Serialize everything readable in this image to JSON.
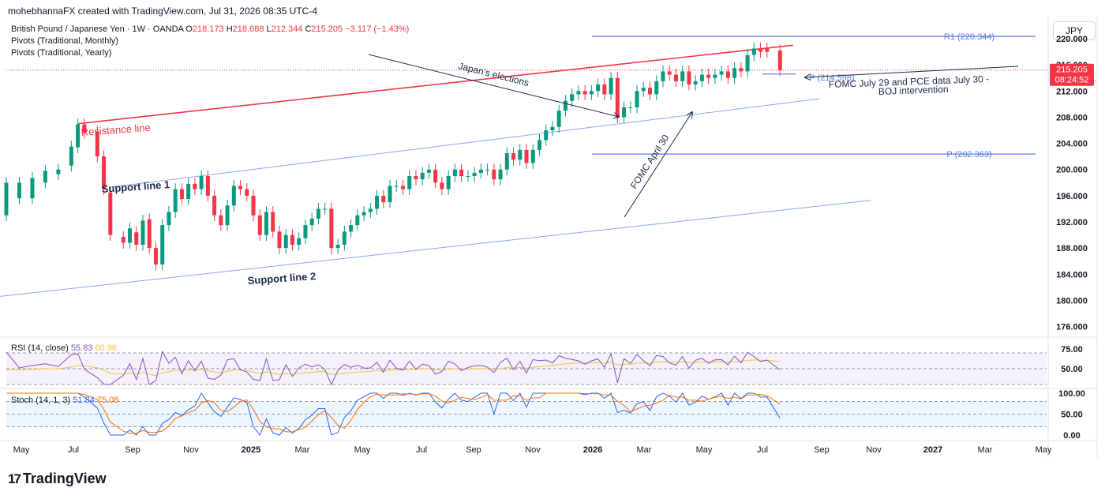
{
  "header": "mohebhannaFX created with TradingView.com, Jul 31, 2026 08:35 UTC-4",
  "symbol": {
    "title": "British Pound / Japanese Yen · 1W · OANDA",
    "ohlc": [
      {
        "k": "O",
        "v": "218.173"
      },
      {
        "k": "H",
        "v": "218.688"
      },
      {
        "k": "L",
        "v": "212.344"
      },
      {
        "k": "C",
        "v": "215.205"
      }
    ],
    "change": "−3.117 (−1.43%)"
  },
  "studies": [
    "Pivots (Traditional, Monthly)",
    "Pivots (Traditional, Yearly)"
  ],
  "currency_button": "JPY",
  "price_axis": [
    "220.000",
    "216.000",
    "212.000",
    "208.000",
    "204.000",
    "200.000",
    "196.000",
    "192.000",
    "188.000",
    "184.000",
    "180.000",
    "176.000"
  ],
  "last_price": {
    "price": "215.205",
    "countdown": "08:24:52"
  },
  "time_axis": [
    {
      "label": "May",
      "bold": false
    },
    {
      "label": "Jul",
      "bold": false
    },
    {
      "label": "Sep",
      "bold": false
    },
    {
      "label": "Nov",
      "bold": false
    },
    {
      "label": "2025",
      "bold": true
    },
    {
      "label": "Mar",
      "bold": false
    },
    {
      "label": "May",
      "bold": false
    },
    {
      "label": "Jul",
      "bold": false
    },
    {
      "label": "Sep",
      "bold": false
    },
    {
      "label": "Nov",
      "bold": false
    },
    {
      "label": "2026",
      "bold": true
    },
    {
      "label": "Mar",
      "bold": false
    },
    {
      "label": "May",
      "bold": false
    },
    {
      "label": "Jul",
      "bold": false
    },
    {
      "label": "Sep",
      "bold": false
    },
    {
      "label": "Nov",
      "bold": false
    },
    {
      "label": "2027",
      "bold": true
    },
    {
      "label": "Mar",
      "bold": false
    },
    {
      "label": "May",
      "bold": false
    }
  ],
  "annotations": {
    "resistance": "Resistance line",
    "support1": "Support line 1",
    "support2": "Support line 2",
    "elections": "Japan's elections",
    "fomc_april": "FOMC April 30",
    "fomc_july_1": "FOMC July 29 and PCE data July 30 -",
    "fomc_july_2": "BOJ intervention",
    "r1": "R1 (220.344)",
    "p_month": "P (214.598)",
    "p_year": "P (202.363)"
  },
  "rsi": {
    "label": "RSI (14, close)",
    "value": "55.83",
    "ma": "60.96",
    "axis": [
      "75.00",
      "50.00"
    ]
  },
  "stoch": {
    "label": "Stoch (14, 1, 3)",
    "k": "51.84",
    "d": "75.08",
    "axis": [
      "100.00",
      "50.00",
      "0.00"
    ]
  },
  "brand": "TradingView",
  "colors": {
    "up": "#089981",
    "down": "#f23645",
    "resistance": "#f23645",
    "support": "#8fa5ee",
    "pivot": "#5b7be9",
    "rsi": "#7e57c2",
    "rsi_ma": "#f9c33a",
    "stoch_k": "#2962ff",
    "stoch_d": "#ff6d00"
  },
  "chart_data": {
    "type": "candlestick",
    "title": "British Pound / Japanese Yen · 1W · OANDA",
    "ylim": [
      174.5,
      223.5
    ],
    "x_start": "2024-04-15",
    "x_end": "2027-05-10",
    "candles": [
      {
        "t": "2024-04-15",
        "o": 193.0,
        "c": 198.0
      },
      {
        "t": "2024-04-29",
        "o": 195.6,
        "c": 198.0
      },
      {
        "t": "2024-05-13",
        "o": 195.6,
        "c": 198.7
      },
      {
        "t": "2024-05-27",
        "o": 198.0,
        "c": 199.8
      },
      {
        "t": "2024-06-10",
        "o": 199.3,
        "c": 200.0
      },
      {
        "t": "2024-06-24",
        "o": 200.6,
        "c": 203.5
      },
      {
        "t": "2024-07-01",
        "o": 203.4,
        "c": 206.9
      },
      {
        "t": "2024-07-08",
        "o": 206.9,
        "c": 205.6
      },
      {
        "t": "2024-07-22",
        "o": 205.8,
        "c": 202.0
      },
      {
        "t": "2024-07-29",
        "o": 202.0,
        "c": 197.0
      },
      {
        "t": "2024-08-05",
        "o": 196.5,
        "c": 190.0
      },
      {
        "t": "2024-08-19",
        "o": 189.7,
        "c": 188.8
      },
      {
        "t": "2024-08-26",
        "o": 188.8,
        "c": 191.0
      },
      {
        "t": "2024-09-02",
        "o": 190.4,
        "c": 188.5
      },
      {
        "t": "2024-09-09",
        "o": 188.5,
        "c": 192.2
      },
      {
        "t": "2024-09-16",
        "o": 192.4,
        "c": 188.0
      },
      {
        "t": "2024-09-23",
        "o": 188.0,
        "c": 185.5
      },
      {
        "t": "2024-09-30",
        "o": 185.5,
        "c": 191.5
      },
      {
        "t": "2024-10-07",
        "o": 191.5,
        "c": 193.5
      },
      {
        "t": "2024-10-14",
        "o": 193.5,
        "c": 197.0
      },
      {
        "t": "2024-10-21",
        "o": 197.0,
        "c": 195.5
      },
      {
        "t": "2024-10-28",
        "o": 195.5,
        "c": 197.8
      },
      {
        "t": "2024-11-04",
        "o": 197.8,
        "c": 197.0
      },
      {
        "t": "2024-11-11",
        "o": 197.0,
        "c": 199.0
      },
      {
        "t": "2024-11-18",
        "o": 199.0,
        "c": 196.0
      },
      {
        "t": "2024-11-25",
        "o": 196.0,
        "c": 193.0
      },
      {
        "t": "2024-12-02",
        "o": 193.0,
        "c": 191.5
      },
      {
        "t": "2024-12-09",
        "o": 191.5,
        "c": 194.5
      },
      {
        "t": "2024-12-16",
        "o": 194.5,
        "c": 197.5
      },
      {
        "t": "2024-12-23",
        "o": 197.5,
        "c": 197.0
      },
      {
        "t": "2024-12-30",
        "o": 197.0,
        "c": 196.0
      },
      {
        "t": "2025-01-06",
        "o": 196.0,
        "c": 193.0
      },
      {
        "t": "2025-01-13",
        "o": 193.0,
        "c": 190.0
      },
      {
        "t": "2025-01-20",
        "o": 190.0,
        "c": 193.5
      },
      {
        "t": "2025-01-27",
        "o": 193.5,
        "c": 190.5
      },
      {
        "t": "2025-02-03",
        "o": 190.5,
        "c": 188.0
      },
      {
        "t": "2025-02-10",
        "o": 188.0,
        "c": 190.0
      },
      {
        "t": "2025-02-17",
        "o": 190.0,
        "c": 188.5
      },
      {
        "t": "2025-02-24",
        "o": 188.5,
        "c": 189.5
      },
      {
        "t": "2025-03-03",
        "o": 189.5,
        "c": 191.5
      },
      {
        "t": "2025-03-10",
        "o": 191.5,
        "c": 192.5
      },
      {
        "t": "2025-03-17",
        "o": 192.5,
        "c": 194.0
      },
      {
        "t": "2025-03-24",
        "o": 194.0,
        "c": 194.0
      },
      {
        "t": "2025-03-31",
        "o": 194.0,
        "c": 188.0
      },
      {
        "t": "2025-04-07",
        "o": 188.0,
        "c": 188.5
      },
      {
        "t": "2025-04-14",
        "o": 188.5,
        "c": 190.5
      },
      {
        "t": "2025-04-21",
        "o": 190.5,
        "c": 191.5
      },
      {
        "t": "2025-04-28",
        "o": 191.5,
        "c": 193.0
      },
      {
        "t": "2025-05-05",
        "o": 193.0,
        "c": 193.5
      },
      {
        "t": "2025-05-12",
        "o": 193.5,
        "c": 194.0
      },
      {
        "t": "2025-05-19",
        "o": 194.0,
        "c": 196.0
      },
      {
        "t": "2025-05-26",
        "o": 196.0,
        "c": 195.0
      },
      {
        "t": "2025-06-02",
        "o": 195.0,
        "c": 197.5
      },
      {
        "t": "2025-06-09",
        "o": 197.5,
        "c": 197.5
      },
      {
        "t": "2025-06-16",
        "o": 197.5,
        "c": 197.0
      },
      {
        "t": "2025-06-23",
        "o": 197.0,
        "c": 199.0
      },
      {
        "t": "2025-06-30",
        "o": 199.0,
        "c": 198.5
      },
      {
        "t": "2025-07-07",
        "o": 198.5,
        "c": 199.5
      },
      {
        "t": "2025-07-14",
        "o": 199.5,
        "c": 200.0
      },
      {
        "t": "2025-07-21",
        "o": 200.0,
        "c": 198.0
      },
      {
        "t": "2025-07-28",
        "o": 198.0,
        "c": 197.0
      },
      {
        "t": "2025-08-04",
        "o": 197.0,
        "c": 199.0
      },
      {
        "t": "2025-08-11",
        "o": 199.0,
        "c": 200.0
      },
      {
        "t": "2025-08-18",
        "o": 200.0,
        "c": 199.0
      },
      {
        "t": "2025-08-25",
        "o": 199.0,
        "c": 199.0
      },
      {
        "t": "2025-09-01",
        "o": 199.0,
        "c": 199.5
      },
      {
        "t": "2025-09-08",
        "o": 199.5,
        "c": 200.0
      },
      {
        "t": "2025-09-15",
        "o": 200.0,
        "c": 200.0
      },
      {
        "t": "2025-09-22",
        "o": 200.0,
        "c": 198.5
      },
      {
        "t": "2025-09-29",
        "o": 198.5,
        "c": 200.0
      },
      {
        "t": "2025-10-06",
        "o": 200.0,
        "c": 202.5
      },
      {
        "t": "2025-10-13",
        "o": 202.5,
        "c": 201.5
      },
      {
        "t": "2025-10-20",
        "o": 201.5,
        "c": 203.0
      },
      {
        "t": "2025-10-27",
        "o": 203.0,
        "c": 201.0
      },
      {
        "t": "2025-11-03",
        "o": 201.0,
        "c": 203.0
      },
      {
        "t": "2025-11-10",
        "o": 203.0,
        "c": 204.5
      },
      {
        "t": "2025-11-17",
        "o": 204.5,
        "c": 206.0
      },
      {
        "t": "2025-11-24",
        "o": 206.0,
        "c": 206.5
      },
      {
        "t": "2025-12-01",
        "o": 206.5,
        "c": 209.0
      },
      {
        "t": "2025-12-08",
        "o": 209.0,
        "c": 210.5
      },
      {
        "t": "2025-12-15",
        "o": 210.5,
        "c": 211.5
      },
      {
        "t": "2025-12-22",
        "o": 211.5,
        "c": 212.0
      },
      {
        "t": "2025-12-29",
        "o": 212.0,
        "c": 211.5
      },
      {
        "t": "2026-01-05",
        "o": 211.5,
        "c": 212.0
      },
      {
        "t": "2026-01-12",
        "o": 212.0,
        "c": 213.0
      },
      {
        "t": "2026-01-19",
        "o": 213.0,
        "c": 211.5
      },
      {
        "t": "2026-01-26",
        "o": 211.5,
        "c": 214.0
      },
      {
        "t": "2026-02-02",
        "o": 214.0,
        "c": 208.0
      },
      {
        "t": "2026-02-09",
        "o": 208.0,
        "c": 209.5
      },
      {
        "t": "2026-02-16",
        "o": 209.5,
        "c": 209.5
      },
      {
        "t": "2026-02-23",
        "o": 209.5,
        "c": 212.0
      },
      {
        "t": "2026-03-02",
        "o": 212.0,
        "c": 212.5
      },
      {
        "t": "2026-03-09",
        "o": 212.5,
        "c": 211.5
      },
      {
        "t": "2026-03-16",
        "o": 211.5,
        "c": 213.5
      },
      {
        "t": "2026-03-23",
        "o": 213.5,
        "c": 215.0
      },
      {
        "t": "2026-03-30",
        "o": 215.0,
        "c": 214.5
      },
      {
        "t": "2026-04-06",
        "o": 214.5,
        "c": 213.5
      },
      {
        "t": "2026-04-13",
        "o": 213.5,
        "c": 215.0
      },
      {
        "t": "2026-04-20",
        "o": 215.0,
        "c": 213.0
      },
      {
        "t": "2026-04-27",
        "o": 213.0,
        "c": 213.5
      },
      {
        "t": "2026-05-04",
        "o": 213.5,
        "c": 214.5
      },
      {
        "t": "2026-05-11",
        "o": 214.5,
        "c": 214.0
      },
      {
        "t": "2026-05-18",
        "o": 214.0,
        "c": 214.5
      },
      {
        "t": "2026-05-25",
        "o": 214.5,
        "c": 215.0
      },
      {
        "t": "2026-06-01",
        "o": 215.0,
        "c": 214.0
      },
      {
        "t": "2026-06-08",
        "o": 214.0,
        "c": 215.5
      },
      {
        "t": "2026-06-15",
        "o": 215.5,
        "c": 215.0
      },
      {
        "t": "2026-06-22",
        "o": 215.0,
        "c": 217.5
      },
      {
        "t": "2026-06-29",
        "o": 217.5,
        "c": 218.5
      },
      {
        "t": "2026-07-06",
        "o": 218.5,
        "c": 218.0
      },
      {
        "t": "2026-07-13",
        "o": 218.5,
        "c": 218.0
      },
      {
        "t": "2026-07-27",
        "o": 218.2,
        "c": 215.2
      }
    ],
    "lines": [
      {
        "name": "Resistance line",
        "from": {
          "t": "2024-07-01",
          "y": 207.0
        },
        "to": {
          "t": "2026-08-10",
          "y": 219.0
        }
      },
      {
        "name": "Support line 1",
        "from": {
          "t": "2024-08-05",
          "y": 197.3
        },
        "to": {
          "t": "2026-09-07",
          "y": 210.8
        }
      },
      {
        "name": "Support line 2",
        "from": {
          "t": "2024-04-01",
          "y": 180.5
        },
        "to": {
          "t": "2026-11-02",
          "y": 195.3
        }
      }
    ],
    "pivots": [
      {
        "label": "R1",
        "value": 220.344
      },
      {
        "label": "P",
        "value": 214.598
      },
      {
        "label": "P",
        "value": 202.363
      }
    ],
    "rsi": {
      "value": 55.83,
      "ma": 60.96,
      "levels": [
        70,
        50,
        30
      ]
    },
    "stoch": {
      "k": 51.84,
      "d": 75.08,
      "levels": [
        80,
        50,
        20
      ]
    }
  }
}
